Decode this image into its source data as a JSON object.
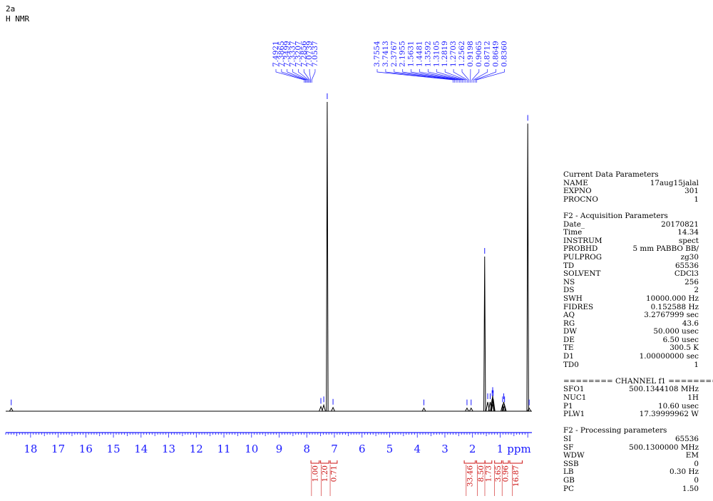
{
  "header": {
    "sample_id": "2a",
    "experiment": "H NMR"
  },
  "chart_data": {
    "type": "line",
    "title": "H NMR",
    "xlabel": "ppm",
    "ylabel": "",
    "x_axis_reversed": true,
    "xlim": [
      18.9,
      -0.15
    ],
    "ticks": [
      "18",
      "17",
      "16",
      "15",
      "14",
      "13",
      "12",
      "11",
      "10",
      "9",
      "8",
      "7",
      "6",
      "5",
      "4",
      "3",
      "2",
      "1"
    ],
    "tick_values": [
      18,
      17,
      16,
      15,
      14,
      13,
      12,
      11,
      10,
      9,
      8,
      7,
      6,
      5,
      4,
      3,
      2,
      1
    ],
    "peaks": [
      {
        "x": 18.7,
        "y": 0.01
      },
      {
        "x": 7.49,
        "y": 0.015
      },
      {
        "x": 7.385,
        "y": 0.02
      },
      {
        "x": 7.26,
        "y": 1.0
      },
      {
        "x": 7.05,
        "y": 0.012
      },
      {
        "x": 3.76,
        "y": 0.01
      },
      {
        "x": 2.2,
        "y": 0.01
      },
      {
        "x": 2.05,
        "y": 0.01
      },
      {
        "x": 1.56,
        "y": 0.5
      },
      {
        "x": 1.45,
        "y": 0.03
      },
      {
        "x": 1.36,
        "y": 0.03
      },
      {
        "x": 1.29,
        "y": 0.04
      },
      {
        "x": 1.27,
        "y": 0.05
      },
      {
        "x": 1.25,
        "y": 0.04
      },
      {
        "x": 0.91,
        "y": 0.02
      },
      {
        "x": 0.87,
        "y": 0.03
      },
      {
        "x": 0.84,
        "y": 0.02
      },
      {
        "x": 0.0,
        "y": 0.93
      },
      {
        "x": -0.05,
        "y": 0.01
      }
    ],
    "peak_labels": [
      {
        "group": "aromatic",
        "labels": [
          "7.4921",
          "7.3865",
          "7.3499",
          "7.3337",
          "7.3207",
          "7.2856",
          "7.0739",
          "7.0537"
        ]
      },
      {
        "group": "aliphatic",
        "labels": [
          "3.7554",
          "3.7413",
          "2.3767",
          "2.1955",
          "1.5631",
          "1.4481",
          "1.3592",
          "1.3105",
          "1.2819",
          "1.2703",
          "1.2562",
          "0.9198",
          "0.9065",
          "0.8712",
          "0.8649",
          "0.8360"
        ]
      }
    ],
    "integrals": [
      {
        "from": 7.85,
        "to": 7.55,
        "value": "1.00"
      },
      {
        "from": 7.5,
        "to": 7.2,
        "value": "1.20"
      },
      {
        "from": 7.15,
        "to": 6.9,
        "value": "0.71"
      },
      {
        "from": 2.3,
        "to": 1.9,
        "value": "33.46"
      },
      {
        "from": 1.85,
        "to": 1.55,
        "value": "8.50"
      },
      {
        "from": 1.55,
        "to": 1.3,
        "value": "1.73"
      },
      {
        "from": 1.2,
        "to": 0.95,
        "value": "3.65"
      },
      {
        "from": 0.9,
        "to": 0.7,
        "value": "0.96"
      },
      {
        "from": 0.65,
        "to": 0.2,
        "value": "16.87"
      }
    ],
    "colors": {
      "spectrum": "#000000",
      "axis": "#1a1aff",
      "peak_labels": "#1a1aff",
      "integrals": "#cc1111"
    }
  },
  "parameters": {
    "current": {
      "title": "Current Data Parameters",
      "rows": [
        [
          "NAME",
          "17aug15jalal"
        ],
        [
          "EXPNO",
          "301"
        ],
        [
          "PROCNO",
          "1"
        ]
      ]
    },
    "acquisition": {
      "title": "F2 - Acquisition Parameters",
      "rows": [
        [
          "Date_",
          "20170821"
        ],
        [
          "Time",
          "14.34"
        ],
        [
          "INSTRUM",
          "spect"
        ],
        [
          "PROBHD",
          "5 mm PABBO BB/"
        ],
        [
          "PULPROG",
          "zg30"
        ],
        [
          "TD",
          "65536"
        ],
        [
          "SOLVENT",
          "CDCl3"
        ],
        [
          "NS",
          "256"
        ],
        [
          "DS",
          "2"
        ],
        [
          "SWH",
          "10000.000 Hz"
        ],
        [
          "FIDRES",
          "0.152588 Hz"
        ],
        [
          "AQ",
          "3.2767999 sec"
        ],
        [
          "RG",
          "43.6"
        ],
        [
          "DW",
          "50.000 usec"
        ],
        [
          "DE",
          "6.50 usec"
        ],
        [
          "TE",
          "300.5 K"
        ],
        [
          "D1",
          "1.00000000 sec"
        ],
        [
          "TD0",
          "1"
        ]
      ]
    },
    "channel": {
      "title": "======== CHANNEL f1 ========",
      "rows": [
        [
          "SFO1",
          "500.1344108 MHz"
        ],
        [
          "NUC1",
          "1H"
        ],
        [
          "P1",
          "10.60 usec"
        ],
        [
          "PLW1",
          "17.39999962 W"
        ]
      ]
    },
    "processing": {
      "title": "F2 - Processing parameters",
      "rows": [
        [
          "SI",
          "65536"
        ],
        [
          "SF",
          "500.1300000 MHz"
        ],
        [
          "WDW",
          "EM"
        ],
        [
          "SSB",
          "0"
        ],
        [
          "LB",
          "0.30 Hz"
        ],
        [
          "GB",
          "0"
        ],
        [
          "PC",
          "1.50"
        ]
      ]
    }
  }
}
